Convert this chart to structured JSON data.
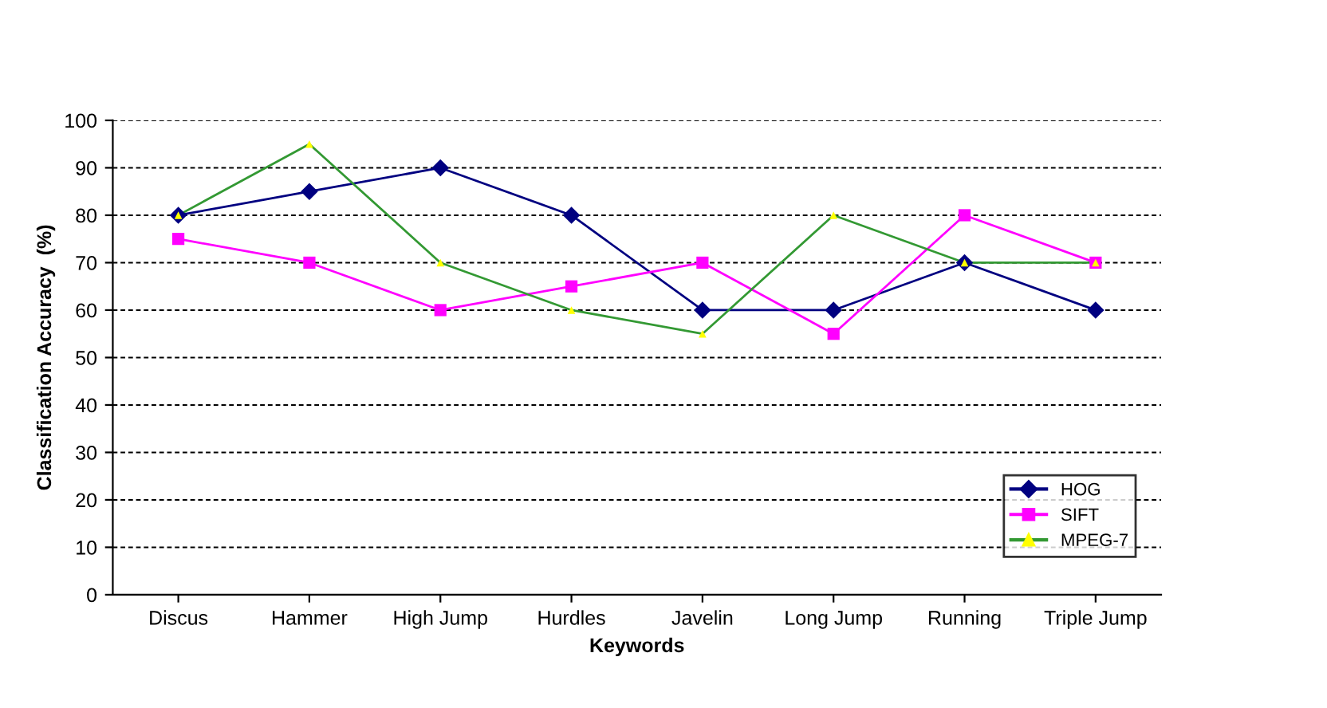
{
  "chart_data": {
    "type": "line",
    "xlabel": "Keywords",
    "ylabel": "Classification Accuracy  (%)",
    "categories": [
      "Discus",
      "Hammer",
      "High Jump",
      "Hurdles",
      "Javelin",
      "Long Jump",
      "Running",
      "Triple Jump"
    ],
    "series": [
      {
        "name": "HOG",
        "color": "#000080",
        "marker": "diamond",
        "values": [
          80,
          85,
          90,
          80,
          60,
          60,
          70,
          60
        ]
      },
      {
        "name": "SIFT",
        "color": "#ff00ff",
        "marker": "square",
        "values": [
          75,
          70,
          60,
          65,
          70,
          55,
          80,
          70
        ]
      },
      {
        "name": "MPEG-7",
        "color": "#339933",
        "colors": [
          "#ffff00",
          "#ffff00",
          "#ffff00",
          "#ffff00",
          "#ffff00",
          "#ffff00",
          "#ffff00",
          "#ffff00"
        ],
        "marker": "triangle",
        "values": [
          80,
          95,
          70,
          60,
          55,
          80,
          70,
          70
        ]
      }
    ],
    "ylim": [
      0,
      100
    ],
    "yticks": [
      0,
      10,
      20,
      30,
      40,
      50,
      60,
      70,
      80,
      90,
      100
    ],
    "grid": "y",
    "legend": "bottom right",
    "line_style": "solid"
  }
}
